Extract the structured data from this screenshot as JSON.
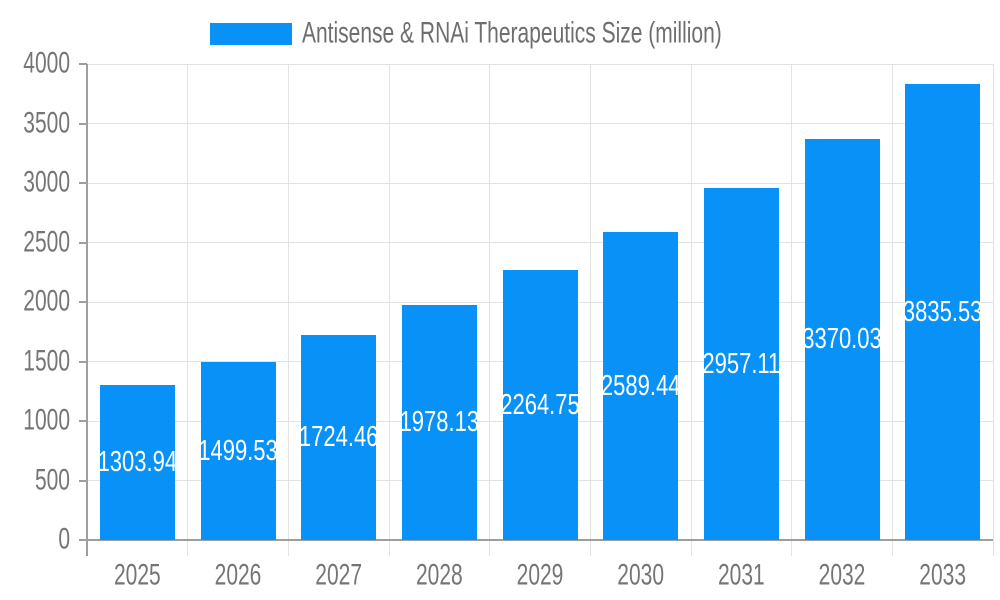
{
  "chart_data": {
    "type": "bar",
    "title": "Antisense & RNAi Therapeutics Size (million)",
    "categories": [
      "2025",
      "2026",
      "2027",
      "2028",
      "2029",
      "2030",
      "2031",
      "2032",
      "2033"
    ],
    "values": [
      1303.94,
      1499.53,
      1724.46,
      1978.13,
      2264.75,
      2589.44,
      2957.11,
      3370.03,
      3835.53
    ],
    "value_labels": [
      "1303.94",
      "1499.53",
      "1724.46",
      "1978.13",
      "2264.75",
      "2589.44",
      "2957.11",
      "3370.03",
      "3835.53"
    ],
    "xlabel": "",
    "ylabel": "",
    "ylim": [
      0,
      4000
    ],
    "yticks": [
      0,
      500,
      1000,
      1500,
      2000,
      2500,
      3000,
      3500,
      4000
    ],
    "grid": "on",
    "legend_position": "top",
    "colors": {
      "bar": "#0892f8",
      "axis_line": "#9e9e9e",
      "grid_line": "#e3e3e3",
      "axis_text": "#757575",
      "title_text": "#6e6e6e",
      "value_text": "#ffffff",
      "background": "#ffffff"
    }
  }
}
